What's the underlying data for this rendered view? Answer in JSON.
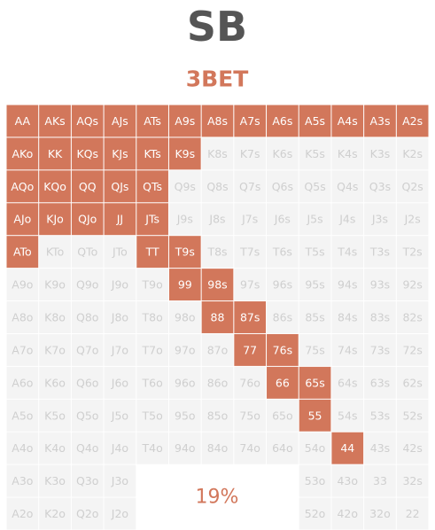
{
  "header": {
    "title": "SB",
    "subtitle": "3BET"
  },
  "grid": {
    "summary": "19%",
    "rows": [
      [
        {
          "label": "AA",
          "highlight": true
        },
        {
          "label": "AKs",
          "highlight": true
        },
        {
          "label": "AQs",
          "highlight": true
        },
        {
          "label": "AJs",
          "highlight": true
        },
        {
          "label": "ATs",
          "highlight": true
        },
        {
          "label": "A9s",
          "highlight": true
        },
        {
          "label": "A8s",
          "highlight": true
        },
        {
          "label": "A7s",
          "highlight": true
        },
        {
          "label": "A6s",
          "highlight": true
        },
        {
          "label": "A5s",
          "highlight": true
        },
        {
          "label": "A4s",
          "highlight": true
        },
        {
          "label": "A3s",
          "highlight": true
        },
        {
          "label": "A2s",
          "highlight": true
        }
      ],
      [
        {
          "label": "AKo",
          "highlight": true
        },
        {
          "label": "KK",
          "highlight": true
        },
        {
          "label": "KQs",
          "highlight": true
        },
        {
          "label": "KJs",
          "highlight": true
        },
        {
          "label": "KTs",
          "highlight": true
        },
        {
          "label": "K9s",
          "highlight": true
        },
        "K8s",
        "K7s",
        "K6s",
        "K5s",
        "K4s",
        "K3s",
        "K2s"
      ],
      [
        {
          "label": "AQo",
          "highlight": true
        },
        {
          "label": "KQo",
          "highlight": true
        },
        {
          "label": "QQ",
          "highlight": true
        },
        {
          "label": "QJs",
          "highlight": true
        },
        {
          "label": "QTs",
          "highlight": true
        },
        "Q9s",
        "Q8s",
        "Q7s",
        "Q6s",
        "Q5s",
        "Q4s",
        "Q3s",
        "Q2s"
      ],
      [
        {
          "label": "AJo",
          "highlight": true
        },
        {
          "label": "KJo",
          "highlight": true
        },
        {
          "label": "QJo",
          "highlight": true
        },
        {
          "label": "JJ",
          "highlight": true
        },
        {
          "label": "JTs",
          "highlight": true
        },
        "J9s",
        "J8s",
        "J7s",
        "J6s",
        "J5s",
        "J4s",
        "J3s",
        "J2s"
      ],
      [
        {
          "label": "ATo",
          "highlight": true
        },
        "KTo",
        "QTo",
        "JTo",
        {
          "label": "TT",
          "highlight": true
        },
        {
          "label": "T9s",
          "highlight": true
        },
        "T8s",
        "T7s",
        "T6s",
        "T5s",
        "T4s",
        "T3s",
        "T2s"
      ],
      [
        "A9o",
        "K9o",
        "Q9o",
        "J9o",
        "T9o",
        {
          "label": "99",
          "highlight": true
        },
        {
          "label": "98s",
          "highlight": true
        },
        "97s",
        "96s",
        "95s",
        "94s",
        "93s",
        "92s"
      ],
      [
        "A8o",
        "K8o",
        "Q8o",
        "J8o",
        "T8o",
        "98o",
        {
          "label": "88",
          "highlight": true
        },
        {
          "label": "87s",
          "highlight": true
        },
        "86s",
        "85s",
        "84s",
        "83s",
        "82s"
      ],
      [
        "A7o",
        "K7o",
        "Q7o",
        "J7o",
        "T7o",
        "97o",
        "87o",
        {
          "label": "77",
          "highlight": true
        },
        {
          "label": "76s",
          "highlight": true
        },
        "75s",
        "74s",
        "73s",
        "72s"
      ],
      [
        "A6o",
        "K6o",
        "Q6o",
        "J6o",
        "T6o",
        "96o",
        "86o",
        "76o",
        {
          "label": "66",
          "highlight": true
        },
        {
          "label": "65s",
          "highlight": true
        },
        "64s",
        "63s",
        "62s"
      ],
      [
        "A5o",
        "K5o",
        "Q5o",
        "J5o",
        "T5o",
        "95o",
        "85o",
        "75o",
        "65o",
        {
          "label": "55",
          "highlight": true
        },
        "54s",
        "53s",
        "52s"
      ],
      [
        "A4o",
        "K4o",
        "Q4o",
        "J4o",
        "T4o",
        "94o",
        "84o",
        "74o",
        "64o",
        "54o",
        {
          "label": "44",
          "highlight": true
        },
        "43s",
        "42s"
      ],
      [
        "A3o",
        "K3o",
        "Q3o",
        "J3o",
        null,
        null,
        null,
        null,
        null,
        "53o",
        "43o",
        "33",
        "32s"
      ],
      [
        "A2o",
        "K2o",
        "Q2o",
        "J2o",
        null,
        null,
        null,
        null,
        null,
        "52o",
        "42o",
        "32o",
        "22"
      ]
    ]
  }
}
